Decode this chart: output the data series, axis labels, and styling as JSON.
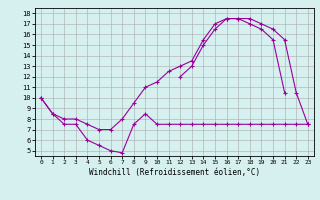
{
  "xlabel": "Windchill (Refroidissement éolien,°C)",
  "x_hours": [
    0,
    1,
    2,
    3,
    4,
    5,
    6,
    7,
    8,
    9,
    10,
    11,
    12,
    13,
    14,
    15,
    16,
    17,
    18,
    19,
    20,
    21,
    22,
    23
  ],
  "line1": [
    10,
    8.5,
    7.5,
    7.5,
    6,
    5.5,
    5,
    4.8,
    7.5,
    8.5,
    7.5,
    7.5,
    7.5,
    7.5,
    7.5,
    7.5,
    7.5,
    7.5,
    7.5,
    7.5,
    7.5,
    7.5,
    7.5,
    7.5
  ],
  "line2": [
    10,
    8.5,
    8,
    8,
    7.5,
    7,
    7,
    8,
    9.5,
    11,
    11.5,
    12.5,
    13,
    13.5,
    15.5,
    17,
    17.5,
    17.5,
    17,
    16.5,
    15.5,
    10.5,
    null,
    null
  ],
  "line3": [
    null,
    null,
    null,
    null,
    null,
    null,
    null,
    null,
    null,
    null,
    null,
    null,
    12,
    13,
    15,
    16.5,
    17.5,
    17.5,
    17.5,
    17,
    16.5,
    15.5,
    10.5,
    7.5
  ],
  "bg_color": "#d6f0f0",
  "line_color": "#990099",
  "xlim": [
    -0.5,
    23.5
  ],
  "ylim": [
    4.5,
    18.5
  ],
  "yticks": [
    5,
    6,
    7,
    8,
    9,
    10,
    11,
    12,
    13,
    14,
    15,
    16,
    17,
    18
  ],
  "xticks": [
    0,
    1,
    2,
    3,
    4,
    5,
    6,
    7,
    8,
    9,
    10,
    11,
    12,
    13,
    14,
    15,
    16,
    17,
    18,
    19,
    20,
    21,
    22,
    23
  ],
  "grid_color": "#aaaaaa",
  "marker": "+",
  "markersize": 3,
  "linewidth": 0.8,
  "tick_fontsize_x": 4.5,
  "tick_fontsize_y": 5.0,
  "xlabel_fontsize": 5.5
}
